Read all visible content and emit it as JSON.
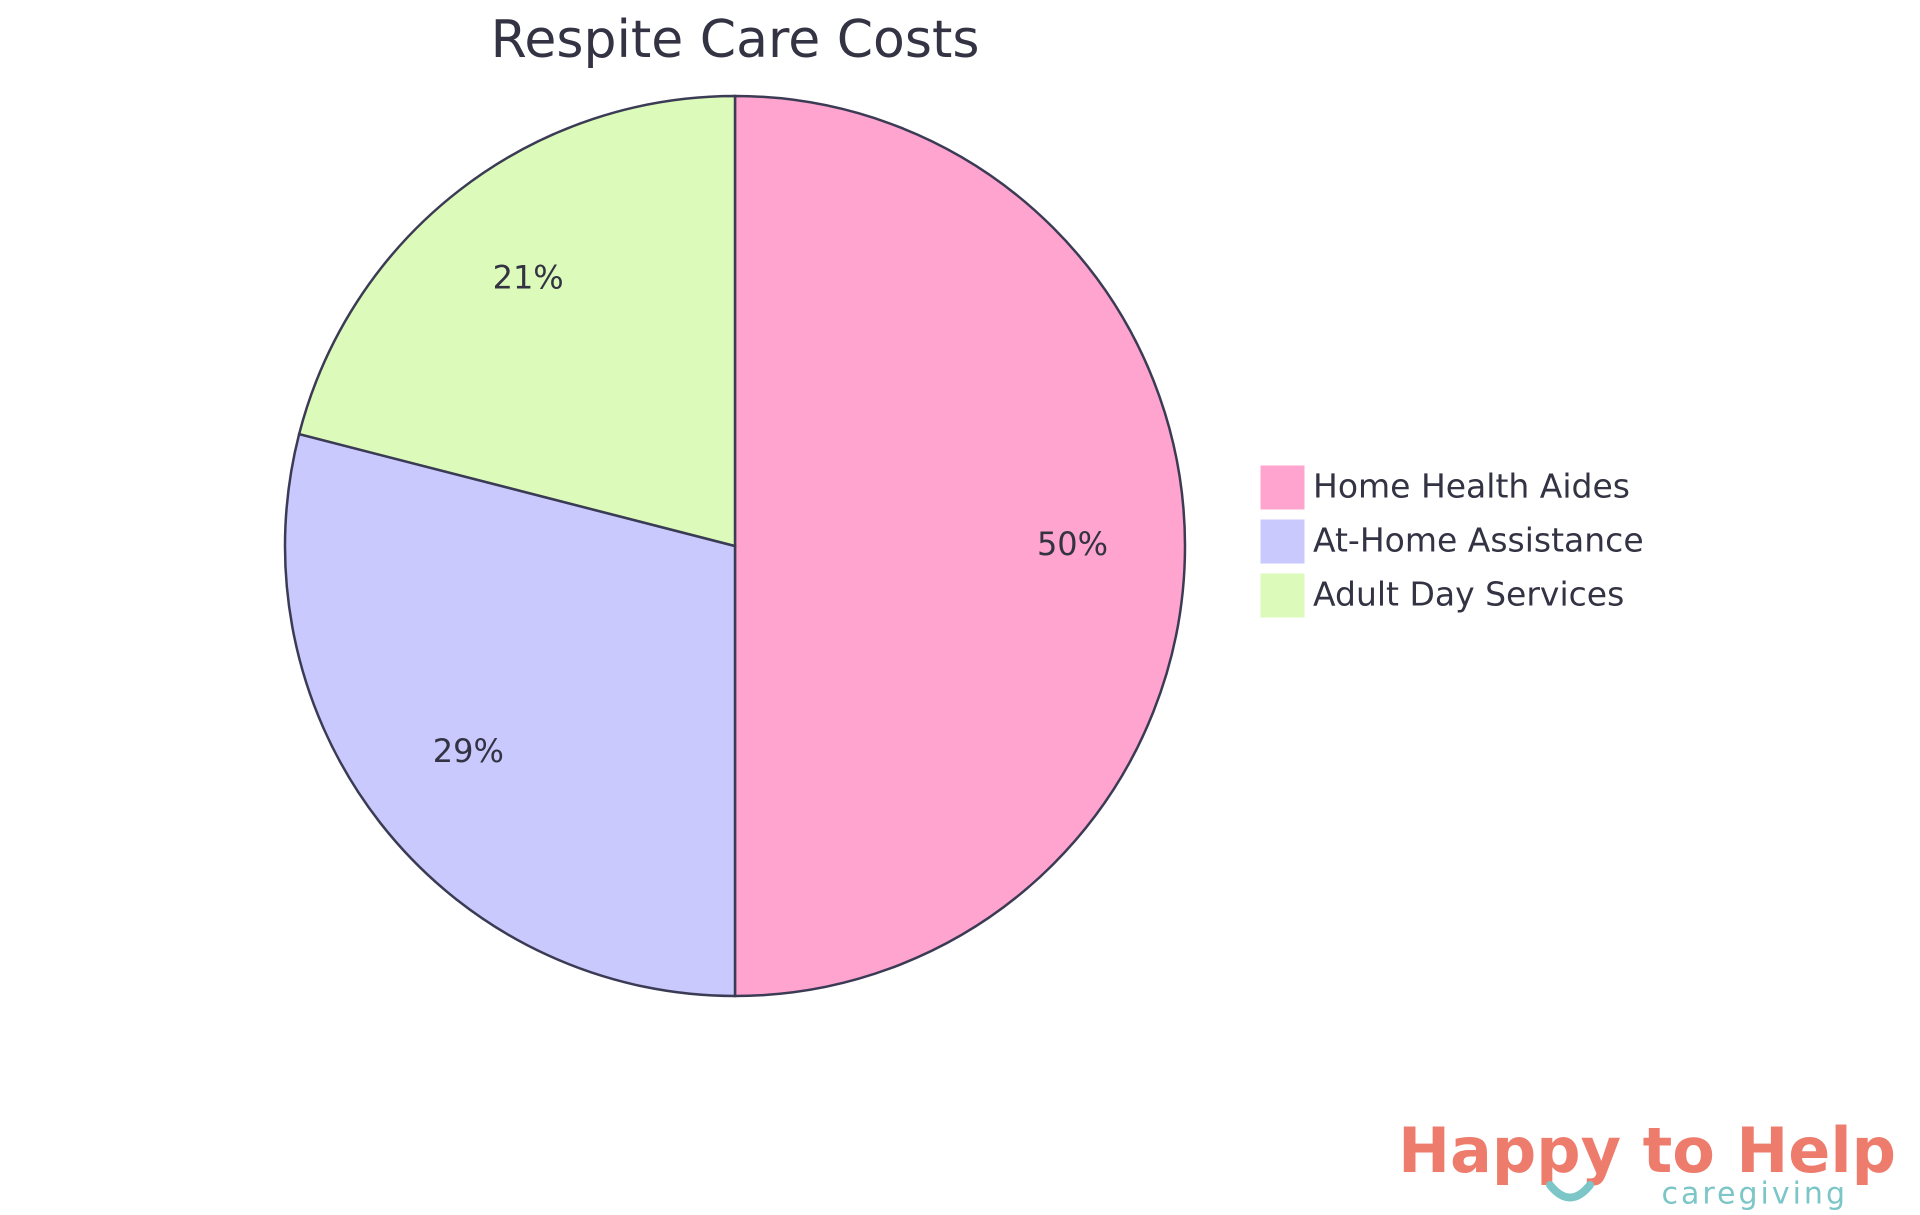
{
  "chart_data": {
    "type": "pie",
    "title": "Respite Care Costs",
    "categories": [
      "Home Health Aides",
      "At-Home Assistance",
      "Adult Day Services"
    ],
    "values": [
      50,
      29,
      21
    ],
    "value_labels": [
      "50%",
      "29%",
      "21%"
    ],
    "colors": [
      "#ffa4ce",
      "#c9c9fd",
      "#dcfab9"
    ],
    "legend": "right"
  },
  "logo": {
    "name": "Happy to Help",
    "tagline": "caregiving"
  }
}
